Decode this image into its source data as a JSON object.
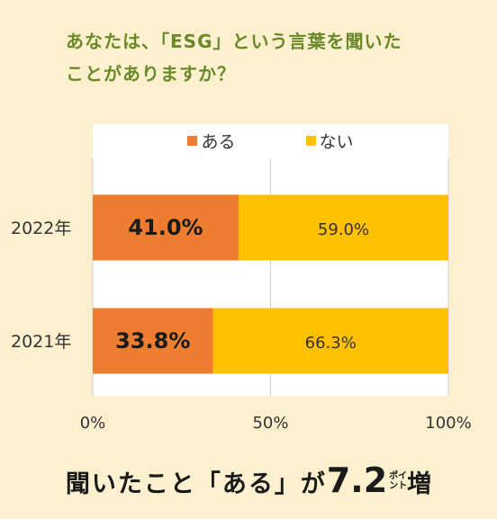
{
  "question": {
    "line1": "あなたは、「ESG」という言葉を聞いた",
    "line2": "ことがありますか？"
  },
  "colors": {
    "background": "#fdf0cf",
    "question": "#6a8a2a",
    "aru": "#ed7d31",
    "nai": "#ffc000",
    "grid": "#d0d0d0"
  },
  "chart_data": {
    "type": "bar",
    "orientation": "horizontal",
    "stacked": true,
    "categories": [
      "2022年",
      "2021年"
    ],
    "series": [
      {
        "name": "ある",
        "values": [
          41.0,
          33.8
        ],
        "labels": [
          "41.0%",
          "33.8%"
        ],
        "color": "#ed7d31"
      },
      {
        "name": "ない",
        "values": [
          59.0,
          66.3
        ],
        "labels": [
          "59.0%",
          "66.3%"
        ],
        "color": "#ffc000"
      }
    ],
    "xlim": [
      0,
      100
    ],
    "xticks": [
      "0%",
      "50%",
      "100%"
    ],
    "grid": true,
    "legend_position": "top"
  },
  "headline": {
    "main": "聞いたこと「ある」が",
    "number": "7.2",
    "unit_top": "ポイ",
    "unit_bottom": "ント",
    "suffix": "増"
  }
}
